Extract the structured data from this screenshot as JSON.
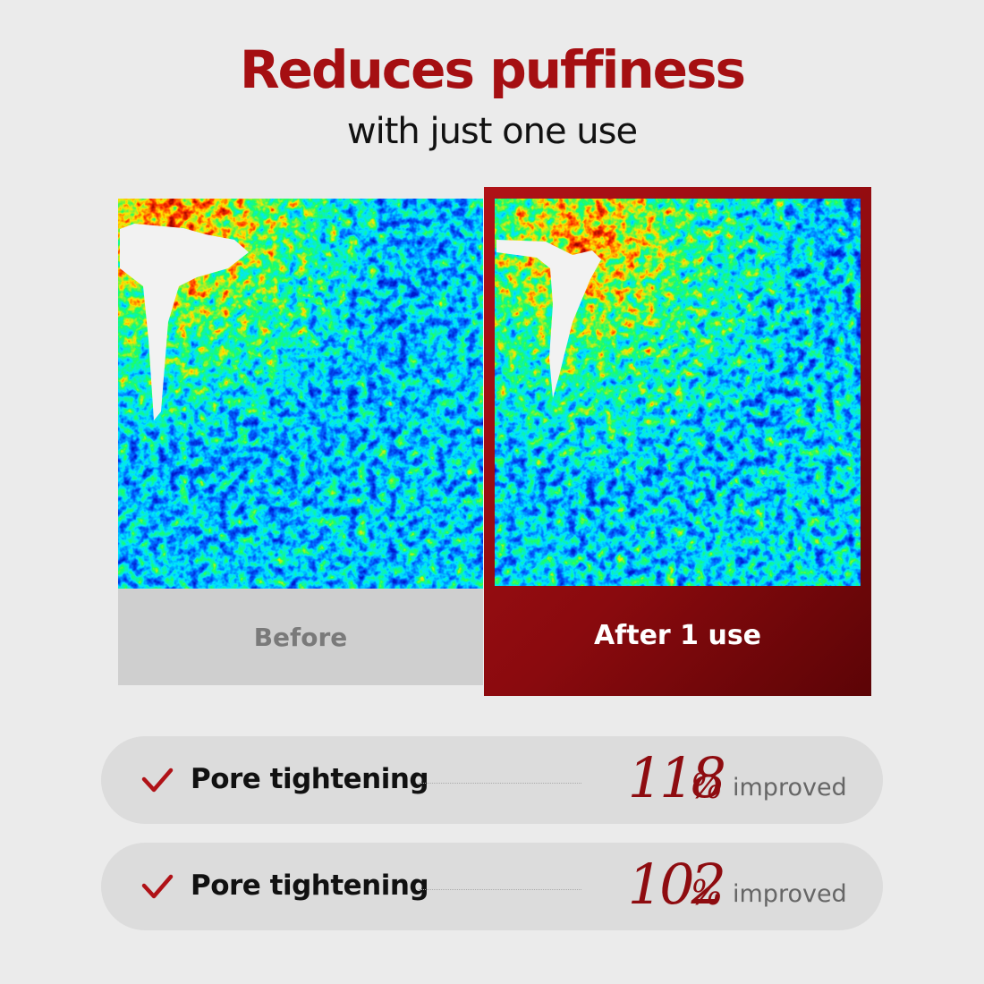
{
  "title": "Reduces puffiness",
  "subtitle": "with just one use",
  "panels": [
    {
      "label": "Before"
    },
    {
      "label": "After 1 use"
    }
  ],
  "stats": [
    {
      "label": "Pore tightening",
      "value": 118,
      "unit": "%",
      "note": "improved"
    },
    {
      "label": "Pore tightening",
      "value": 102,
      "unit": "%",
      "note": "improved"
    }
  ]
}
